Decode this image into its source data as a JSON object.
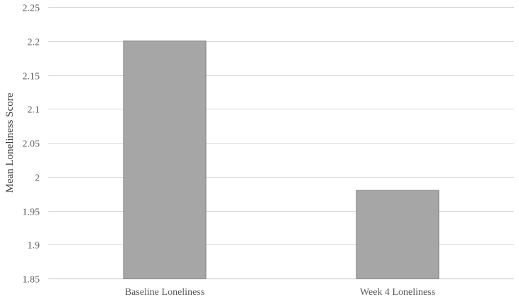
{
  "chart_data": {
    "type": "bar",
    "title": "",
    "xlabel": "",
    "ylabel": "Mean Loneliness Score",
    "categories": [
      "Baseline Loneliness",
      "Week 4 Loneliness"
    ],
    "values": [
      2.2,
      1.98
    ],
    "ylim": [
      1.85,
      2.25
    ],
    "yticks": [
      1.85,
      1.9,
      1.95,
      2,
      2.05,
      2.1,
      2.15,
      2.2,
      2.25
    ],
    "ytick_labels": [
      "1.85",
      "1.9",
      "1.95",
      "2",
      "2.05",
      "2.1",
      "2.15",
      "2.2",
      "2.25"
    ],
    "grid": true,
    "legend": "none",
    "colors": {
      "bar": "#a6a6a6",
      "bar_stroke": "#7f7f7f",
      "grid": "#d9d9d9",
      "axis": "#bfbfbf"
    }
  }
}
